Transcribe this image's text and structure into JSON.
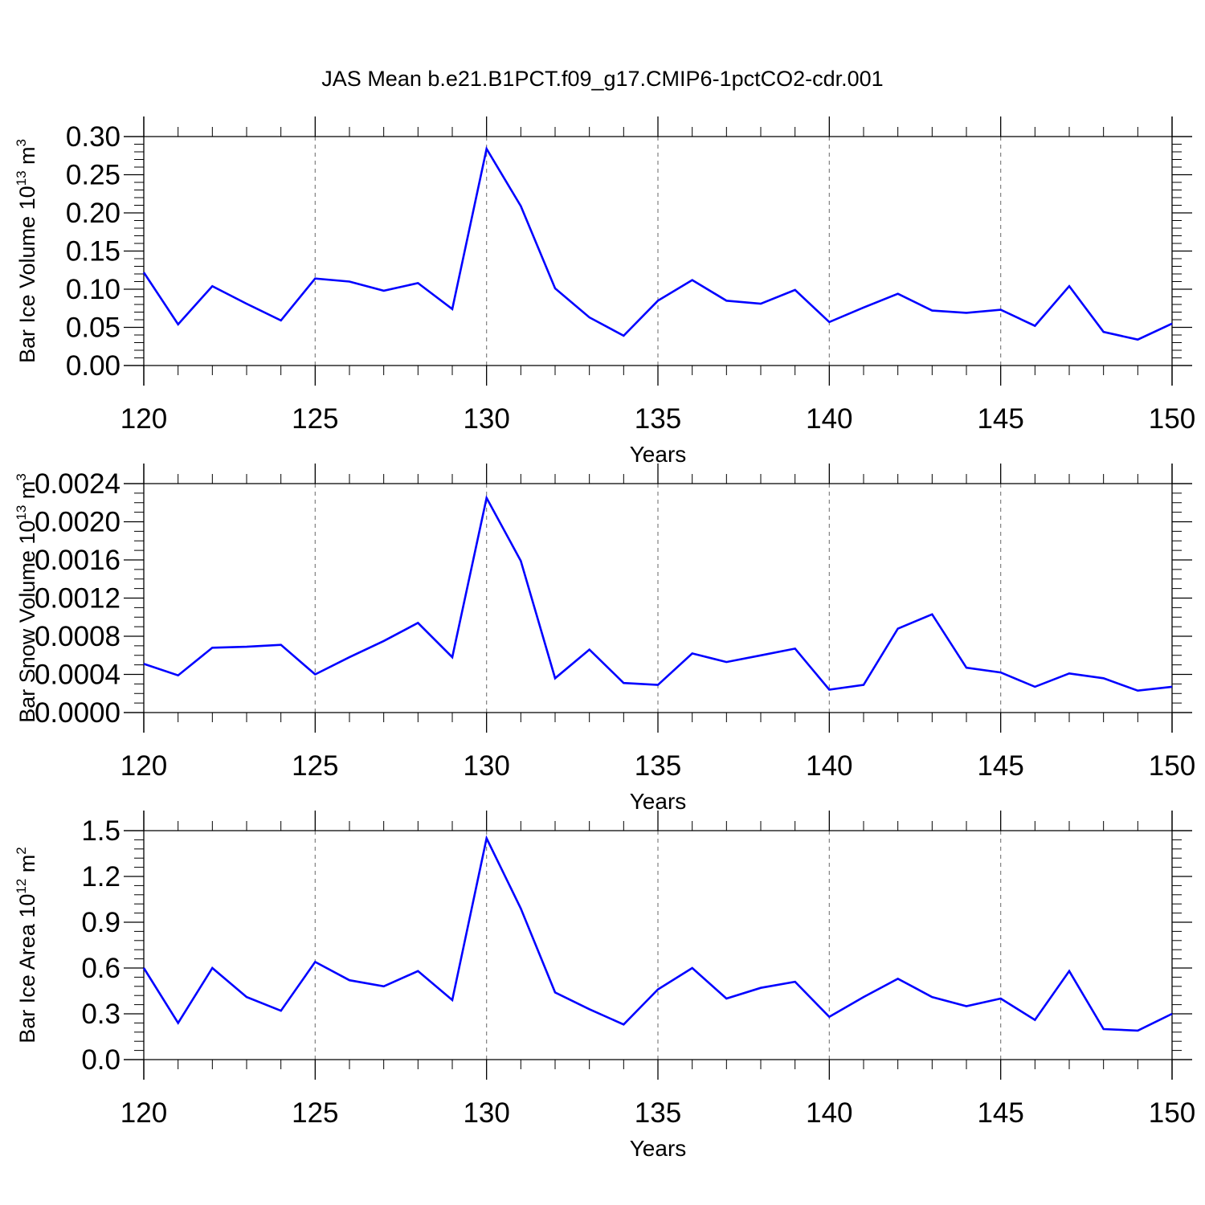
{
  "title": "JAS Mean b.e21.B1PCT.f09_g17.CMIP6-1pctCO2-cdr.001",
  "colors": {
    "line": "#0000ff",
    "axis": "#000000",
    "grid": "#808080",
    "background": "#ffffff"
  },
  "chart_data": [
    {
      "type": "line",
      "ylabel": {
        "text": "Bar Ice Volume 10",
        "exponent": "13",
        "unit": "m",
        "unit_exponent": "3"
      },
      "xlabel": "Years",
      "xlim": [
        120,
        150
      ],
      "ylim": [
        0,
        0.3
      ],
      "xticks": [
        120,
        125,
        130,
        135,
        140,
        145,
        150
      ],
      "xtick_labels": [
        "120",
        "125",
        "130",
        "135",
        "140",
        "145",
        "150"
      ],
      "yticks": [
        0,
        0.05,
        0.1,
        0.15,
        0.2,
        0.25,
        0.3
      ],
      "ytick_labels": [
        "0.00",
        "0.05",
        "0.10",
        "0.15",
        "0.20",
        "0.25",
        "0.30"
      ],
      "yminor_step": 0.01,
      "grid": "vertical dashed at 125, 130, 135, 140, 145",
      "x": [
        120,
        121,
        122,
        123,
        124,
        125,
        126,
        127,
        128,
        129,
        130,
        131,
        132,
        133,
        134,
        135,
        136,
        137,
        138,
        139,
        140,
        141,
        142,
        143,
        144,
        145,
        146,
        147,
        148,
        149,
        150
      ],
      "values": [
        0.122,
        0.054,
        0.104,
        0.081,
        0.059,
        0.114,
        0.11,
        0.098,
        0.108,
        0.074,
        0.284,
        0.209,
        0.101,
        0.063,
        0.039,
        0.085,
        0.112,
        0.085,
        0.081,
        0.099,
        0.057,
        0.076,
        0.094,
        0.072,
        0.069,
        0.073,
        0.052,
        0.104,
        0.044,
        0.034,
        0.055
      ]
    },
    {
      "type": "line",
      "ylabel": {
        "text": "Bar Snow Volume 10",
        "exponent": "13",
        "unit": "m",
        "unit_exponent": "3"
      },
      "xlabel": "Years",
      "xlim": [
        120,
        150
      ],
      "ylim": [
        0,
        0.0024
      ],
      "xticks": [
        120,
        125,
        130,
        135,
        140,
        145,
        150
      ],
      "xtick_labels": [
        "120",
        "125",
        "130",
        "135",
        "140",
        "145",
        "150"
      ],
      "yticks": [
        0,
        0.0004,
        0.0008,
        0.0012,
        0.0016,
        0.002,
        0.0024
      ],
      "ytick_labels": [
        "0.0000",
        "0.0004",
        "0.0008",
        "0.0012",
        "0.0016",
        "0.0020",
        "0.0024"
      ],
      "yminor_step": 0.0001,
      "grid": "vertical dashed at 125, 130, 135, 140, 145",
      "x": [
        120,
        121,
        122,
        123,
        124,
        125,
        126,
        127,
        128,
        129,
        130,
        131,
        132,
        133,
        134,
        135,
        136,
        137,
        138,
        139,
        140,
        141,
        142,
        143,
        144,
        145,
        146,
        147,
        148,
        149,
        150
      ],
      "values": [
        0.00051,
        0.00039,
        0.00068,
        0.00069,
        0.00071,
        0.0004,
        0.00058,
        0.00075,
        0.00094,
        0.00058,
        0.00225,
        0.00159,
        0.00036,
        0.00066,
        0.00031,
        0.00029,
        0.00062,
        0.00053,
        0.0006,
        0.00067,
        0.00024,
        0.00029,
        0.00088,
        0.00103,
        0.00047,
        0.00042,
        0.00027,
        0.00041,
        0.00036,
        0.00023,
        0.00027
      ]
    },
    {
      "type": "line",
      "ylabel": {
        "text": "Bar Ice Area 10",
        "exponent": "12",
        "unit": "m",
        "unit_exponent": "2"
      },
      "xlabel": "Years",
      "xlim": [
        120,
        150
      ],
      "ylim": [
        0,
        1.5
      ],
      "xticks": [
        120,
        125,
        130,
        135,
        140,
        145,
        150
      ],
      "xtick_labels": [
        "120",
        "125",
        "130",
        "135",
        "140",
        "145",
        "150"
      ],
      "yticks": [
        0,
        0.3,
        0.6,
        0.9,
        1.2,
        1.5
      ],
      "ytick_labels": [
        "0.0",
        "0.3",
        "0.6",
        "0.9",
        "1.2",
        "1.5"
      ],
      "yminor_step": 0.06,
      "grid": "vertical dashed at 125, 130, 135, 140, 145",
      "x": [
        120,
        121,
        122,
        123,
        124,
        125,
        126,
        127,
        128,
        129,
        130,
        131,
        132,
        133,
        134,
        135,
        136,
        137,
        138,
        139,
        140,
        141,
        142,
        143,
        144,
        145,
        146,
        147,
        148,
        149,
        150
      ],
      "values": [
        0.6,
        0.24,
        0.6,
        0.41,
        0.32,
        0.64,
        0.52,
        0.48,
        0.58,
        0.39,
        1.45,
        0.99,
        0.44,
        0.33,
        0.23,
        0.46,
        0.6,
        0.4,
        0.47,
        0.51,
        0.28,
        0.41,
        0.53,
        0.41,
        0.35,
        0.4,
        0.26,
        0.58,
        0.2,
        0.19,
        0.3
      ]
    }
  ]
}
